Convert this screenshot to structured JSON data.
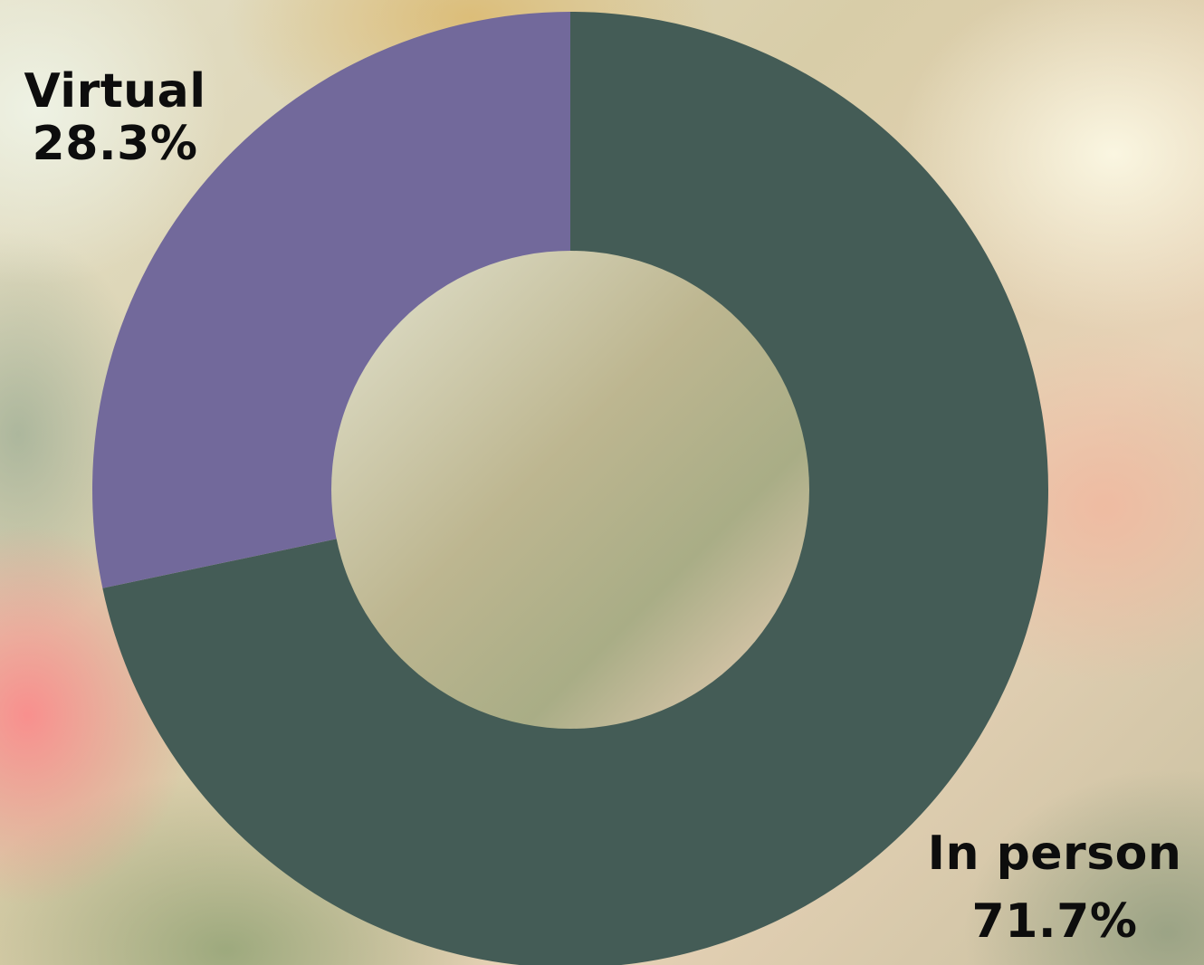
{
  "chart_data": {
    "type": "pie",
    "donut": true,
    "title": "",
    "slices": [
      {
        "label": "In person",
        "value": 71.7,
        "value_label": "71.7%",
        "color": "#445c56"
      },
      {
        "label": "Virtual",
        "value": 28.3,
        "value_label": "28.3%",
        "color": "#72699b"
      }
    ]
  }
}
